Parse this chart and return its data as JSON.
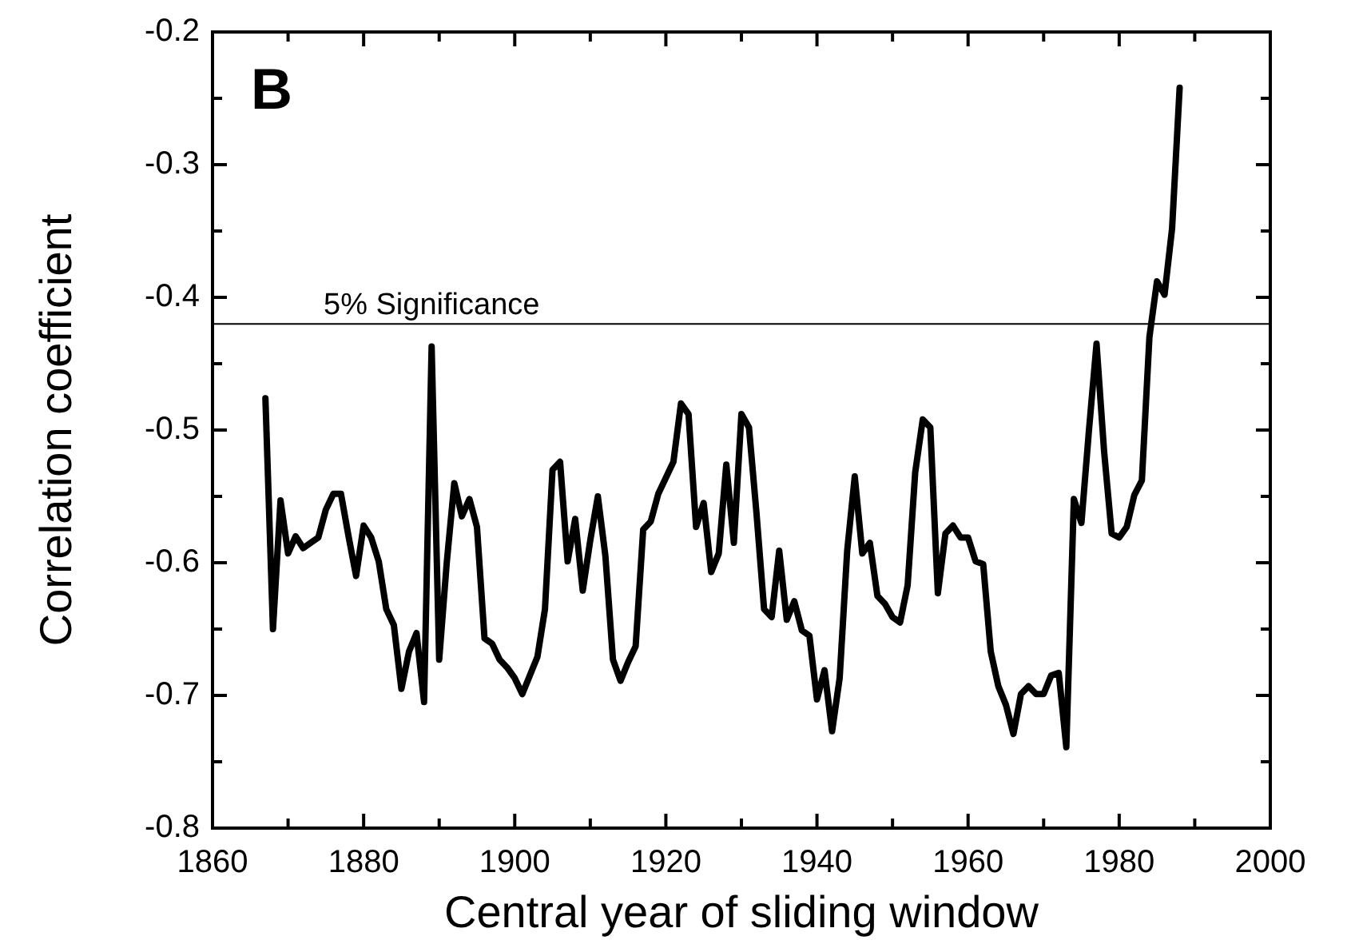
{
  "chart_data": {
    "type": "line",
    "annotations": [
      "B"
    ],
    "xlabel": "Central year of sliding window",
    "ylabel": "Correlation coefficient",
    "x": [
      1867,
      1868,
      1869,
      1870,
      1871,
      1872,
      1873,
      1874,
      1875,
      1876,
      1877,
      1878,
      1879,
      1880,
      1881,
      1882,
      1883,
      1884,
      1885,
      1886,
      1887,
      1888,
      1889,
      1890,
      1891,
      1892,
      1893,
      1894,
      1895,
      1896,
      1897,
      1898,
      1899,
      1900,
      1901,
      1902,
      1903,
      1904,
      1905,
      1906,
      1907,
      1908,
      1909,
      1910,
      1911,
      1912,
      1913,
      1914,
      1915,
      1916,
      1917,
      1918,
      1919,
      1920,
      1921,
      1922,
      1923,
      1924,
      1925,
      1926,
      1927,
      1928,
      1929,
      1930,
      1931,
      1932,
      1933,
      1934,
      1935,
      1936,
      1937,
      1938,
      1939,
      1940,
      1941,
      1942,
      1943,
      1944,
      1945,
      1946,
      1947,
      1948,
      1949,
      1950,
      1951,
      1952,
      1953,
      1954,
      1955,
      1956,
      1957,
      1958,
      1959,
      1960,
      1961,
      1962,
      1963,
      1964,
      1965,
      1966,
      1967,
      1968,
      1969,
      1970,
      1971,
      1972,
      1973,
      1974,
      1975,
      1976,
      1977,
      1978,
      1979,
      1980,
      1981,
      1982,
      1983,
      1984,
      1985,
      1986,
      1987,
      1988
    ],
    "values": [
      -0.476,
      -0.65,
      -0.553,
      -0.593,
      -0.58,
      -0.589,
      -0.585,
      -0.581,
      -0.56,
      -0.548,
      -0.548,
      -0.58,
      -0.61,
      -0.572,
      -0.581,
      -0.599,
      -0.635,
      -0.647,
      -0.695,
      -0.667,
      -0.653,
      -0.705,
      -0.437,
      -0.673,
      -0.6,
      -0.54,
      -0.565,
      -0.552,
      -0.573,
      -0.657,
      -0.661,
      -0.673,
      -0.679,
      -0.687,
      -0.699,
      -0.685,
      -0.671,
      -0.635,
      -0.53,
      -0.524,
      -0.599,
      -0.567,
      -0.621,
      -0.583,
      -0.55,
      -0.595,
      -0.673,
      -0.689,
      -0.675,
      -0.663,
      -0.575,
      -0.569,
      -0.548,
      -0.536,
      -0.524,
      -0.48,
      -0.488,
      -0.573,
      -0.555,
      -0.607,
      -0.593,
      -0.526,
      -0.585,
      -0.488,
      -0.498,
      -0.563,
      -0.635,
      -0.641,
      -0.591,
      -0.643,
      -0.629,
      -0.651,
      -0.655,
      -0.703,
      -0.681,
      -0.727,
      -0.687,
      -0.591,
      -0.535,
      -0.593,
      -0.585,
      -0.625,
      -0.631,
      -0.641,
      -0.645,
      -0.617,
      -0.532,
      -0.492,
      -0.498,
      -0.623,
      -0.578,
      -0.572,
      -0.581,
      -0.581,
      -0.599,
      -0.601,
      -0.667,
      -0.693,
      -0.707,
      -0.729,
      -0.699,
      -0.693,
      -0.699,
      -0.699,
      -0.685,
      -0.683,
      -0.739,
      -0.552,
      -0.57,
      -0.5,
      -0.435,
      -0.516,
      -0.578,
      -0.581,
      -0.573,
      -0.549,
      -0.538,
      -0.43,
      -0.388,
      -0.398,
      -0.348,
      -0.242
    ],
    "color": "#000000",
    "xlim": [
      1860,
      2000
    ],
    "xticks": [
      1860,
      {
        "value": 1870,
        "label": null
      },
      1880,
      {
        "value": 1890,
        "label": null
      },
      1900,
      {
        "value": 1910,
        "label": null
      },
      1920,
      {
        "value": 1930,
        "label": null
      },
      1940,
      {
        "value": 1950,
        "label": null
      },
      1960,
      {
        "value": 1970,
        "label": null
      },
      1980,
      {
        "value": 1990,
        "label": null
      },
      2000
    ],
    "ylim": [
      -0.8,
      -0.2
    ],
    "yticks": [
      -0.8,
      {
        "value": -0.75,
        "label": null
      },
      -0.7,
      {
        "value": -0.65,
        "label": null
      },
      -0.6,
      {
        "value": -0.55,
        "label": null
      },
      -0.5,
      {
        "value": -0.45,
        "label": null
      },
      -0.4,
      {
        "value": -0.35,
        "label": null
      },
      -0.3,
      {
        "value": -0.25,
        "label": null
      },
      -0.2
    ],
    "ref_lines": [
      {
        "axis": "y",
        "value": -0.42,
        "label": "5% Significance",
        "color": "#000000"
      }
    ],
    "marker": "none",
    "line_style": "solid"
  }
}
